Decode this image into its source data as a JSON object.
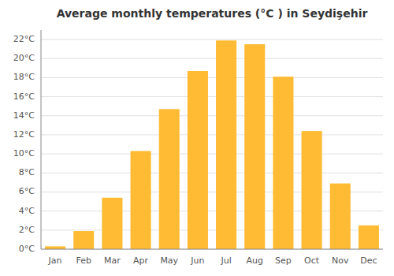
{
  "chart_data": {
    "type": "bar",
    "title": "Average monthly temperatures (°C ) in Seydişehir",
    "categories": [
      "Jan",
      "Feb",
      "Mar",
      "Apr",
      "May",
      "Jun",
      "Jul",
      "Aug",
      "Sep",
      "Oct",
      "Nov",
      "Dec"
    ],
    "values": [
      0.3,
      1.9,
      5.4,
      10.3,
      14.7,
      18.7,
      21.9,
      21.5,
      18.1,
      12.4,
      6.9,
      2.5
    ],
    "color": "#FFBB33",
    "ylim": [
      0,
      23
    ],
    "yticks": [
      {
        "value": 0,
        "label": "0°C"
      },
      {
        "value": 2,
        "label": "2°C"
      },
      {
        "value": 4,
        "label": "4°C"
      },
      {
        "value": 6,
        "label": "6°C"
      },
      {
        "value": 8,
        "label": "8°C"
      },
      {
        "value": 10,
        "label": "10°C"
      },
      {
        "value": 12,
        "label": "12°C"
      },
      {
        "value": 14,
        "label": "14°C"
      },
      {
        "value": 16,
        "label": "16°C"
      },
      {
        "value": 18,
        "label": "18°C"
      },
      {
        "value": 20,
        "label": "20°C"
      },
      {
        "value": 22,
        "label": "22°C"
      }
    ],
    "grid": true
  }
}
